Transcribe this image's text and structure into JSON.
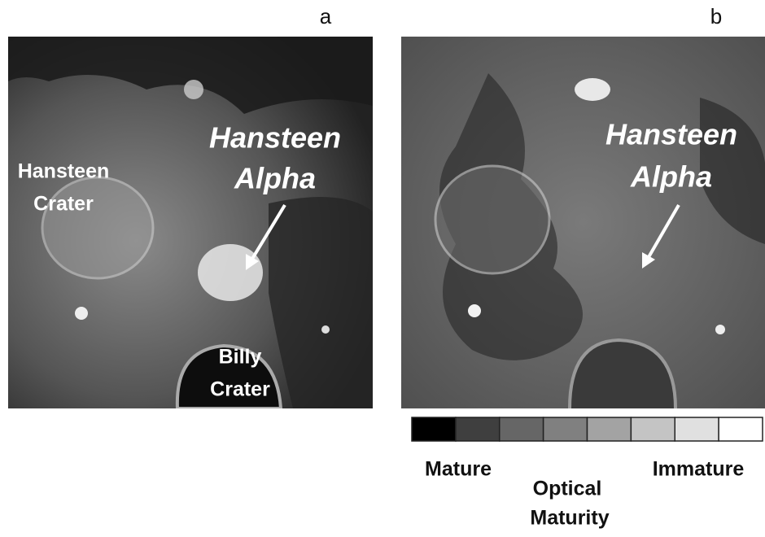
{
  "panels": [
    {
      "label": "a",
      "annotations": [
        {
          "lines": [
            "Hansteen",
            "Crater"
          ]
        },
        {
          "lines": [
            "Hansteen",
            "Alpha"
          ]
        },
        {
          "lines": [
            "Billy",
            "Crater"
          ]
        }
      ]
    },
    {
      "label": "b",
      "annotations": [
        {
          "lines": [
            "Hansteen",
            "Alpha"
          ]
        }
      ]
    }
  ],
  "colorbar": {
    "colors": [
      "#000000",
      "#3f3f3f",
      "#666666",
      "#808080",
      "#a3a3a3",
      "#c4c4c4",
      "#e0e0e0",
      "#ffffff"
    ],
    "left_label": "Mature",
    "title": [
      "Optical",
      "Maturity"
    ],
    "right_label": "Immature"
  }
}
